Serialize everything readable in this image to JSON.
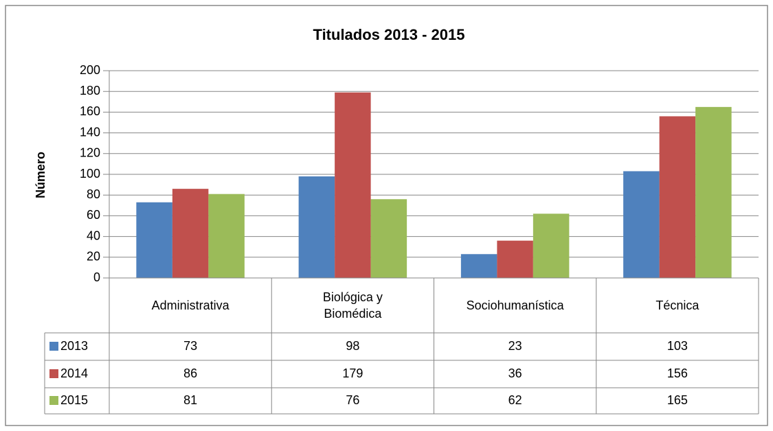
{
  "chart_data": {
    "type": "bar",
    "title": "Titulados 2013 - 2015",
    "y_label": "Número",
    "categories": [
      "Administrativa",
      "Biológica y Biomédica",
      "Sociohumanística",
      "Técnica"
    ],
    "series": [
      {
        "name": "2013",
        "color": "#4f81bd",
        "values": [
          73,
          98,
          23,
          103
        ]
      },
      {
        "name": "2014",
        "color": "#c0504d",
        "values": [
          86,
          179,
          36,
          156
        ]
      },
      {
        "name": "2015",
        "color": "#9bbb59",
        "values": [
          81,
          76,
          62,
          165
        ]
      }
    ],
    "ylim": [
      0,
      200
    ],
    "yticks": [
      0,
      20,
      40,
      60,
      80,
      100,
      120,
      140,
      160,
      180,
      200
    ],
    "grid": true
  }
}
